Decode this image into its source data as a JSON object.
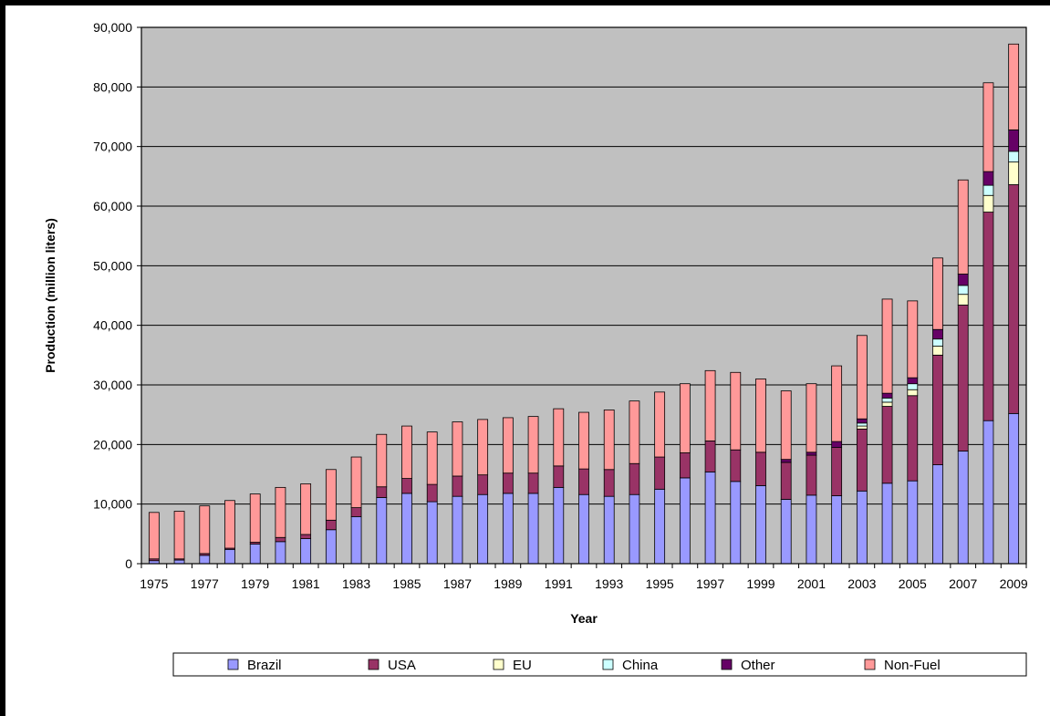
{
  "chart_data": {
    "type": "bar",
    "stacked": true,
    "title": "",
    "xlabel": "Year",
    "ylabel": "Production (million liters)",
    "ylim": [
      0,
      90000
    ],
    "ytick_step": 10000,
    "ytick_labels": [
      "0",
      "10,000",
      "20,000",
      "30,000",
      "40,000",
      "50,000",
      "60,000",
      "70,000",
      "80,000",
      "90,000"
    ],
    "grid": true,
    "legend_position": "bottom",
    "plot_background": "#c0c0c0",
    "categories": [
      "1975",
      "1976",
      "1977",
      "1978",
      "1979",
      "1980",
      "1981",
      "1982",
      "1983",
      "1984",
      "1985",
      "1986",
      "1987",
      "1988",
      "1989",
      "1990",
      "1991",
      "1992",
      "1993",
      "1994",
      "1995",
      "1996",
      "1997",
      "1998",
      "1999",
      "2000",
      "2001",
      "2002",
      "2003",
      "2004",
      "2005",
      "2006",
      "2007",
      "2008",
      "2009"
    ],
    "xtick_labels": [
      "1975",
      "1977",
      "1979",
      "1981",
      "1983",
      "1985",
      "1987",
      "1989",
      "1991",
      "1993",
      "1995",
      "1997",
      "1999",
      "2001",
      "2003",
      "2005",
      "2007",
      "2009"
    ],
    "series": [
      {
        "name": "Brazil",
        "color": "#9999ff",
        "values": [
          500,
          600,
          1400,
          2400,
          3300,
          3700,
          4200,
          5700,
          7900,
          11100,
          11800,
          10400,
          11300,
          11600,
          11800,
          11800,
          12800,
          11600,
          11300,
          11600,
          12500,
          14400,
          15400,
          13800,
          13100,
          10800,
          11500,
          11400,
          12200,
          13500,
          13900,
          16600,
          18900,
          24000,
          25200
        ]
      },
      {
        "name": "USA",
        "color": "#993366",
        "values": [
          300,
          200,
          300,
          200,
          300,
          700,
          700,
          1600,
          1500,
          1800,
          2500,
          2900,
          3400,
          3300,
          3400,
          3400,
          3600,
          4300,
          4500,
          5200,
          5400,
          4200,
          5200,
          5300,
          5600,
          6200,
          6700,
          8100,
          10400,
          12900,
          14300,
          18400,
          24500,
          35000,
          38400
        ]
      },
      {
        "name": "EU",
        "color": "#ffffcc",
        "values": [
          0,
          0,
          0,
          0,
          0,
          0,
          0,
          0,
          0,
          0,
          0,
          0,
          0,
          0,
          0,
          0,
          0,
          0,
          0,
          0,
          0,
          0,
          0,
          0,
          0,
          0,
          0,
          0,
          500,
          700,
          1000,
          1500,
          1800,
          2800,
          3800
        ]
      },
      {
        "name": "China",
        "color": "#ccffff",
        "values": [
          0,
          0,
          0,
          0,
          0,
          0,
          0,
          0,
          0,
          0,
          0,
          0,
          0,
          0,
          0,
          0,
          0,
          0,
          0,
          0,
          0,
          0,
          0,
          0,
          0,
          0,
          0,
          0,
          500,
          700,
          1000,
          1200,
          1500,
          1700,
          1800
        ]
      },
      {
        "name": "Other",
        "color": "#660066",
        "values": [
          0,
          0,
          0,
          0,
          0,
          0,
          0,
          0,
          0,
          0,
          0,
          0,
          0,
          0,
          0,
          0,
          0,
          0,
          0,
          0,
          0,
          0,
          0,
          0,
          0,
          500,
          500,
          1000,
          700,
          800,
          1000,
          1600,
          1900,
          2300,
          3600
        ]
      },
      {
        "name": "Non-Fuel",
        "color": "#ff9999",
        "values": [
          7800,
          8000,
          8000,
          8000,
          8100,
          8400,
          8500,
          8500,
          8500,
          8800,
          8800,
          8800,
          9100,
          9300,
          9300,
          9500,
          9600,
          9500,
          10000,
          10500,
          10900,
          11600,
          11800,
          13000,
          12300,
          11500,
          11500,
          12700,
          14000,
          15800,
          12900,
          12000,
          15800,
          14900,
          14400
        ]
      }
    ]
  }
}
